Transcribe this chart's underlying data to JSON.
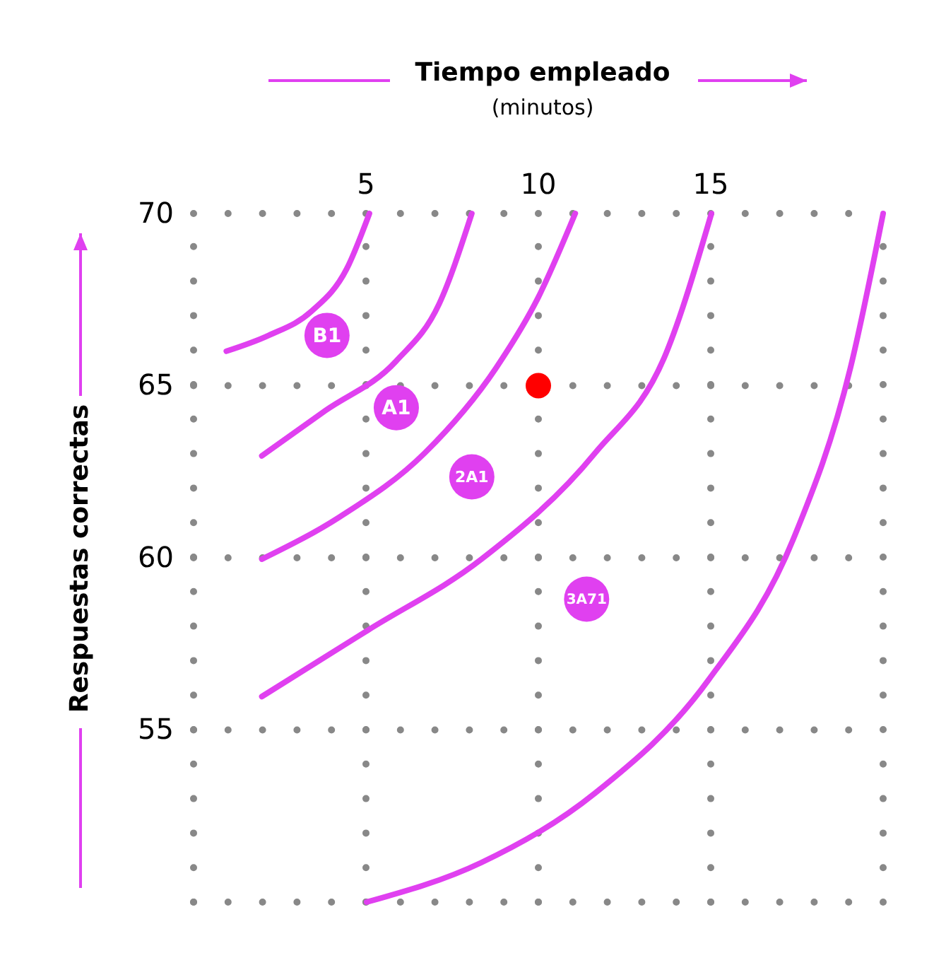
{
  "chart_data": {
    "type": "line",
    "xlabel": "Tiempo empleado\n(minutos)",
    "ylabel": "Respuestas correctas",
    "xlim": [
      0,
      20
    ],
    "ylim": [
      50,
      70
    ],
    "xticks": [
      {
        "value": 0,
        "label": null
      },
      5,
      10,
      15,
      {
        "value": 20,
        "label": null
      }
    ],
    "yticks": [
      {
        "value": 50,
        "label": null
      },
      55,
      60,
      65,
      70
    ],
    "grid": true,
    "line_style": "solid",
    "series": [
      {
        "color": "#e040f0",
        "x": [
          0.95,
          2.18,
          3.42,
          4.44,
          5.1
        ],
        "values": [
          66.0,
          66.46,
          67.16,
          68.39,
          70
        ]
      },
      {
        "color": "#e040f0",
        "x": [
          1.98,
          3.83,
          5.88,
          7.12,
          8.07
        ],
        "values": [
          62.96,
          64.28,
          65.72,
          67.37,
          70
        ]
      },
      {
        "color": "#e040f0",
        "x": [
          1.98,
          4.24,
          6.71,
          8.77,
          10,
          11.07
        ],
        "values": [
          59.96,
          61.19,
          63.05,
          65.51,
          67.57,
          70
        ]
      },
      {
        "color": "#e040f0",
        "x": [
          1.98,
          5.06,
          8.35,
          11.65,
          13.7,
          15.02
        ],
        "values": [
          55.97,
          57.9,
          59.96,
          63.05,
          65.93,
          70
        ]
      },
      {
        "color": "#e040f0",
        "x": [
          5.02,
          8.35,
          11.65,
          14.94,
          17.41,
          19.05,
          20
        ],
        "values": [
          50,
          51.15,
          53.17,
          56.46,
          60.58,
          65.51,
          70
        ]
      },
      {
        "type": "scatter",
        "marker": "circle",
        "color": "#e040f0",
        "x": [
          3.87,
          5.88,
          8.07,
          11.4
        ],
        "values": [
          66.46,
          64.36,
          62.35,
          58.8
        ]
      },
      {
        "type": "scatter",
        "marker": "circle",
        "color": "#ff0000",
        "x": [
          10
        ],
        "values": [
          65
        ]
      }
    ],
    "annotations": [
      {
        "text": "B1",
        "x": 3.87,
        "y": 66.46
      },
      {
        "text": "A1",
        "x": 5.88,
        "y": 64.36
      },
      {
        "text": "2A1",
        "x": 8.07,
        "y": 62.35
      },
      {
        "text": "3A71",
        "x": 11.4,
        "y": 58.8
      }
    ]
  }
}
